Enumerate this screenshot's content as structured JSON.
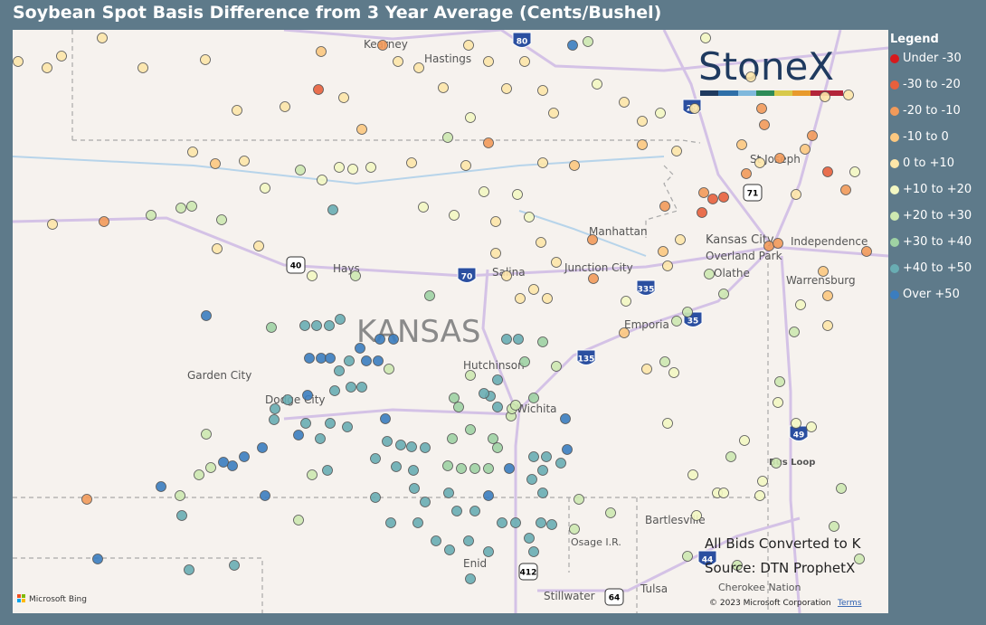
{
  "header": {
    "title": "Soybean Spot Basis Difference from 3 Year Average (Cents/Bushel)"
  },
  "legend": {
    "title": "Legend",
    "items": [
      {
        "label": "Under -30",
        "color": "#d7191c"
      },
      {
        "label": "-30 to -20",
        "color": "#e8603c"
      },
      {
        "label": "-20 to -10",
        "color": "#f29a5a"
      },
      {
        "label": "-10 to 0",
        "color": "#fcc880"
      },
      {
        "label": "0 to +10",
        "color": "#fde6a8"
      },
      {
        "label": "+10 to +20",
        "color": "#f3f7c2"
      },
      {
        "label": "+20 to +30",
        "color": "#cde8b0"
      },
      {
        "label": "+30 to +40",
        "color": "#9fd2a3"
      },
      {
        "label": "+40 to +50",
        "color": "#69adb3"
      },
      {
        "label": "Over +50",
        "color": "#3b7dbf"
      }
    ]
  },
  "map": {
    "labels": [
      "Kearney",
      "Hastings",
      "St Joseph",
      "Manhattan",
      "Kansas City",
      "Independence",
      "Overland Park",
      "Olathe",
      "Hays",
      "Salina",
      "Junction City",
      "KANSAS",
      "Warrensburg",
      "Emporia",
      "Garden City",
      "Dodge City",
      "Hutchinson",
      "Wichita",
      "Bus Loop",
      "Bartlesville",
      "Osage I.R.",
      "Enid",
      "Stillwater",
      "Tulsa",
      "Cherokee Nation"
    ],
    "shields": [
      "80",
      "29",
      "71",
      "70",
      "40",
      "335",
      "35",
      "135",
      "49",
      "44",
      "412",
      "64"
    ],
    "brand": "StoneX",
    "notes": [
      "All Bids Converted to K",
      "Source: DTN ProphetX"
    ],
    "copyright": "© 2023 Microsoft Corporation",
    "terms": "Terms",
    "provider": "Microsoft Bing"
  }
}
